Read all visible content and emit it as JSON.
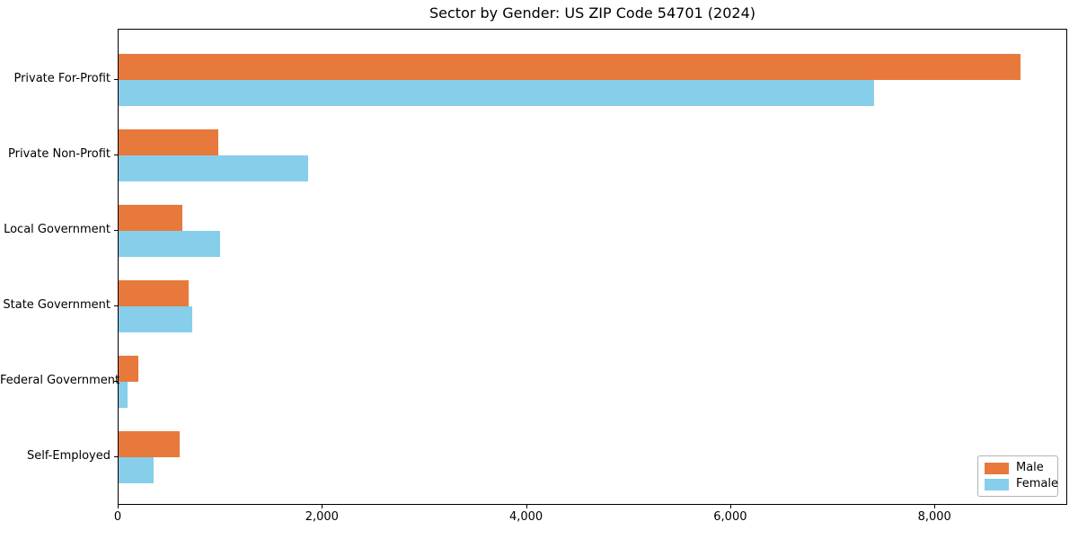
{
  "figure": {
    "background": "#ffffff",
    "spine_color": "#000000"
  },
  "chart_data": {
    "type": "bar",
    "orientation": "horizontal",
    "title": "Sector by Gender: US ZIP Code 54701 (2024)",
    "categories": [
      "Private For-Profit",
      "Private Non-Profit",
      "Local Government",
      "State Government",
      "Federal Government",
      "Self-Employed"
    ],
    "series": [
      {
        "name": "Male",
        "color": "#E8793C",
        "values": [
          8830,
          980,
          620,
          690,
          195,
          600
        ]
      },
      {
        "name": "Female",
        "color": "#87CEEB",
        "values": [
          7400,
          1860,
          990,
          720,
          90,
          345
        ]
      }
    ],
    "xlabel": "",
    "ylabel": "",
    "xlim": [
      0,
      9300
    ],
    "xticks": [
      0,
      2000,
      4000,
      6000,
      8000
    ],
    "xtick_labels": [
      "0",
      "2,000",
      "4,000",
      "6,000",
      "8,000"
    ],
    "grid": false,
    "legend": {
      "position": "lower right"
    }
  }
}
